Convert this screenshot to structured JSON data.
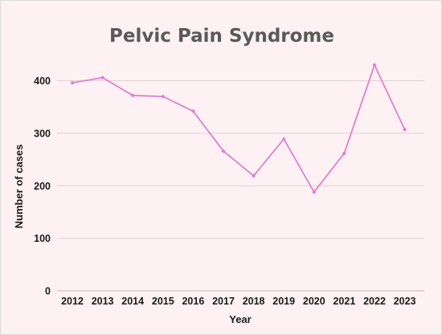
{
  "chart_data": {
    "type": "line",
    "title": "Pelvic Pain Syndrome",
    "xlabel": "Year",
    "ylabel": "Number of cases",
    "categories": [
      "2012",
      "2013",
      "2014",
      "2015",
      "2016",
      "2017",
      "2018",
      "2019",
      "2020",
      "2021",
      "2022",
      "2023"
    ],
    "series": [
      {
        "values": [
          396,
          406,
          372,
          370,
          342,
          266,
          219,
          289,
          188,
          262,
          430,
          307
        ]
      }
    ],
    "ylim": [
      0,
      450
    ],
    "yticks": [
      0,
      100,
      200,
      300,
      400
    ],
    "grid": true,
    "colors": {
      "line": "#e080cf",
      "background": "#fdf1f3",
      "grid": "#e3cfd3"
    }
  }
}
